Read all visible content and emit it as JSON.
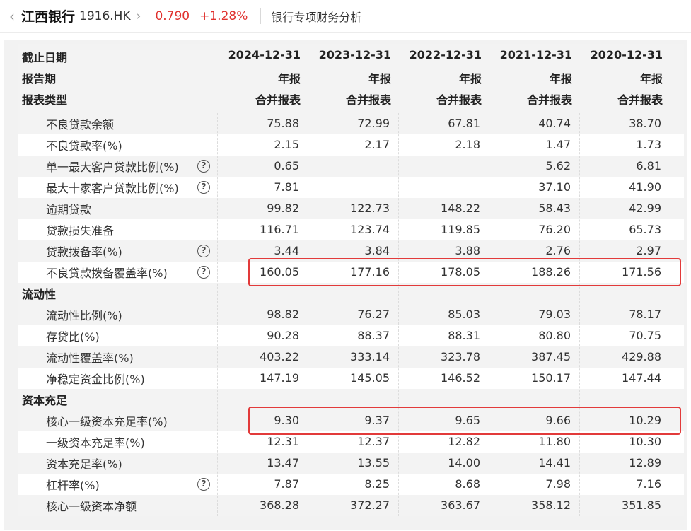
{
  "header": {
    "name": "江西银行",
    "code": "1916.HK",
    "price": "0.790",
    "change": "+1.28%",
    "subtitle": "银行专项财务分析"
  },
  "columns": {
    "row_labels": [
      "截止日期",
      "报告期",
      "报表类型"
    ],
    "dates": [
      "2024-12-31",
      "2023-12-31",
      "2022-12-31",
      "2021-12-31",
      "2020-12-31"
    ],
    "period": "年报",
    "report_type": "合并报表"
  },
  "rows": [
    {
      "label": "不良贷款余额",
      "values": [
        "75.88",
        "72.99",
        "67.81",
        "40.74",
        "38.70"
      ]
    },
    {
      "label": "不良贷款率(%)",
      "values": [
        "2.15",
        "2.17",
        "2.18",
        "1.47",
        "1.73"
      ]
    },
    {
      "label": "单一最大客户贷款比例(%)",
      "help": "?",
      "values": [
        "0.65",
        "",
        "",
        "5.62",
        "6.81"
      ]
    },
    {
      "label": "最大十家客户贷款比例(%)",
      "help": "?",
      "values": [
        "7.81",
        "",
        "",
        "37.10",
        "41.90"
      ]
    },
    {
      "label": "逾期贷款",
      "values": [
        "99.82",
        "122.73",
        "148.22",
        "58.43",
        "42.99"
      ]
    },
    {
      "label": "贷款损失准备",
      "values": [
        "116.71",
        "123.74",
        "119.85",
        "76.20",
        "65.73"
      ]
    },
    {
      "label": "贷款拨备率(%)",
      "help": "?",
      "values": [
        "3.44",
        "3.84",
        "3.88",
        "2.76",
        "2.97"
      ]
    },
    {
      "label": "不良贷款拨备覆盖率(%)",
      "help": "?",
      "values": [
        "160.05",
        "177.16",
        "178.05",
        "188.26",
        "171.56"
      ]
    },
    {
      "label": "流动性",
      "section": true
    },
    {
      "label": "流动性比例(%)",
      "values": [
        "98.82",
        "76.27",
        "85.03",
        "79.03",
        "78.17"
      ]
    },
    {
      "label": "存贷比(%)",
      "values": [
        "90.28",
        "88.37",
        "88.31",
        "80.80",
        "70.75"
      ]
    },
    {
      "label": "流动性覆盖率(%)",
      "values": [
        "403.22",
        "333.14",
        "323.78",
        "387.45",
        "429.88"
      ]
    },
    {
      "label": "净稳定资金比例(%)",
      "values": [
        "147.19",
        "145.05",
        "146.52",
        "150.17",
        "147.44"
      ]
    },
    {
      "label": "资本充足",
      "section": true
    },
    {
      "label": "核心一级资本充足率(%)",
      "values": [
        "9.30",
        "9.37",
        "9.65",
        "9.66",
        "10.29"
      ]
    },
    {
      "label": "一级资本充足率(%)",
      "values": [
        "12.31",
        "12.37",
        "12.82",
        "11.80",
        "10.30"
      ]
    },
    {
      "label": "资本充足率(%)",
      "values": [
        "13.47",
        "13.55",
        "14.00",
        "14.41",
        "12.89"
      ]
    },
    {
      "label": "杠杆率(%)",
      "help": "?",
      "values": [
        "7.87",
        "8.25",
        "8.68",
        "7.98",
        "7.16"
      ]
    },
    {
      "label": "核心一级资本净额",
      "values": [
        "368.28",
        "372.27",
        "363.67",
        "358.12",
        "351.85"
      ]
    }
  ],
  "colors": {
    "up": "#e0312e",
    "highlight": "#e23a3a"
  }
}
